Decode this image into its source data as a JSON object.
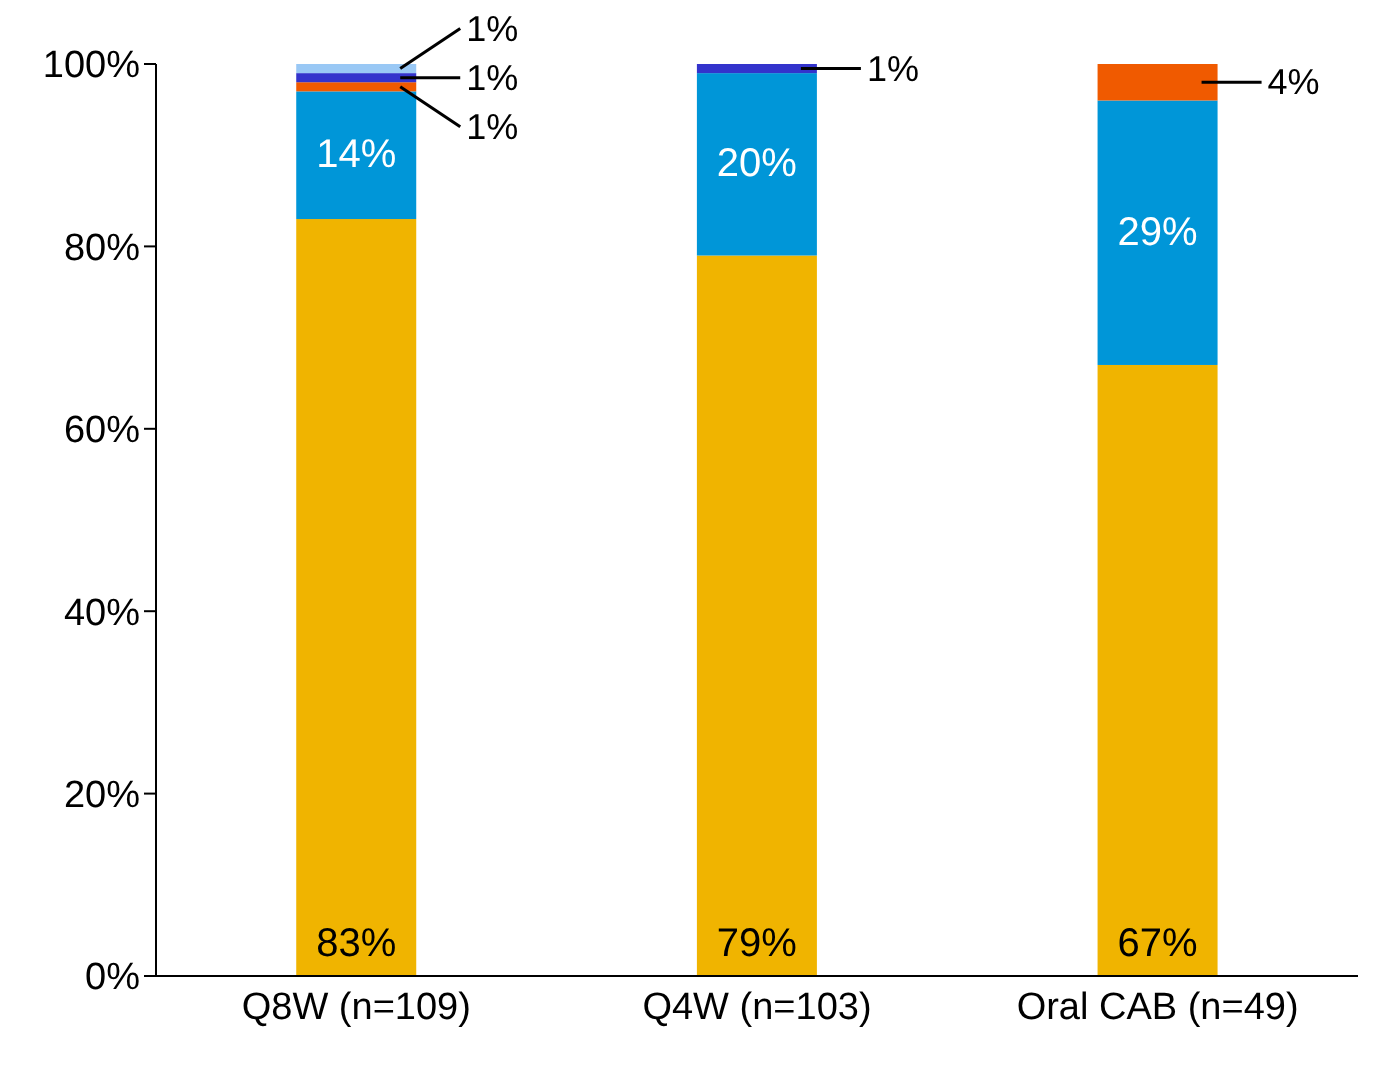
{
  "chart_data": {
    "type": "bar",
    "stacked": true,
    "categories": [
      "Q8W (n=109)",
      "Q4W (n=103)",
      "Oral CAB (n=49)"
    ],
    "series": [
      {
        "color": "#f0b400",
        "values": [
          83,
          79,
          67
        ],
        "value_labels": [
          "83%",
          "79%",
          "67%"
        ]
      },
      {
        "color": "#0096d8",
        "values": [
          14,
          20,
          29
        ],
        "value_labels": [
          "14%",
          "20%",
          "29%"
        ]
      },
      {
        "color": "#f05a00",
        "values": [
          1,
          null,
          4
        ],
        "value_labels": [
          "1%",
          null,
          "4%"
        ]
      },
      {
        "color": "#3333cc",
        "values": [
          1,
          1,
          null
        ],
        "value_labels": [
          "1%",
          "1%",
          null
        ]
      },
      {
        "color": "#99c8f5",
        "values": [
          1,
          null,
          null
        ],
        "value_labels": [
          "1%",
          null,
          null
        ]
      }
    ],
    "ylim": [
      0,
      100
    ],
    "yticks": [
      {
        "value": 0,
        "label": "0%"
      },
      {
        "value": 20,
        "label": "20%"
      },
      {
        "value": 40,
        "label": "40%"
      },
      {
        "value": 60,
        "label": "60%"
      },
      {
        "value": 80,
        "label": "80%"
      },
      {
        "value": 100,
        "label": "100%"
      }
    ],
    "grid": false,
    "legend": false
  }
}
